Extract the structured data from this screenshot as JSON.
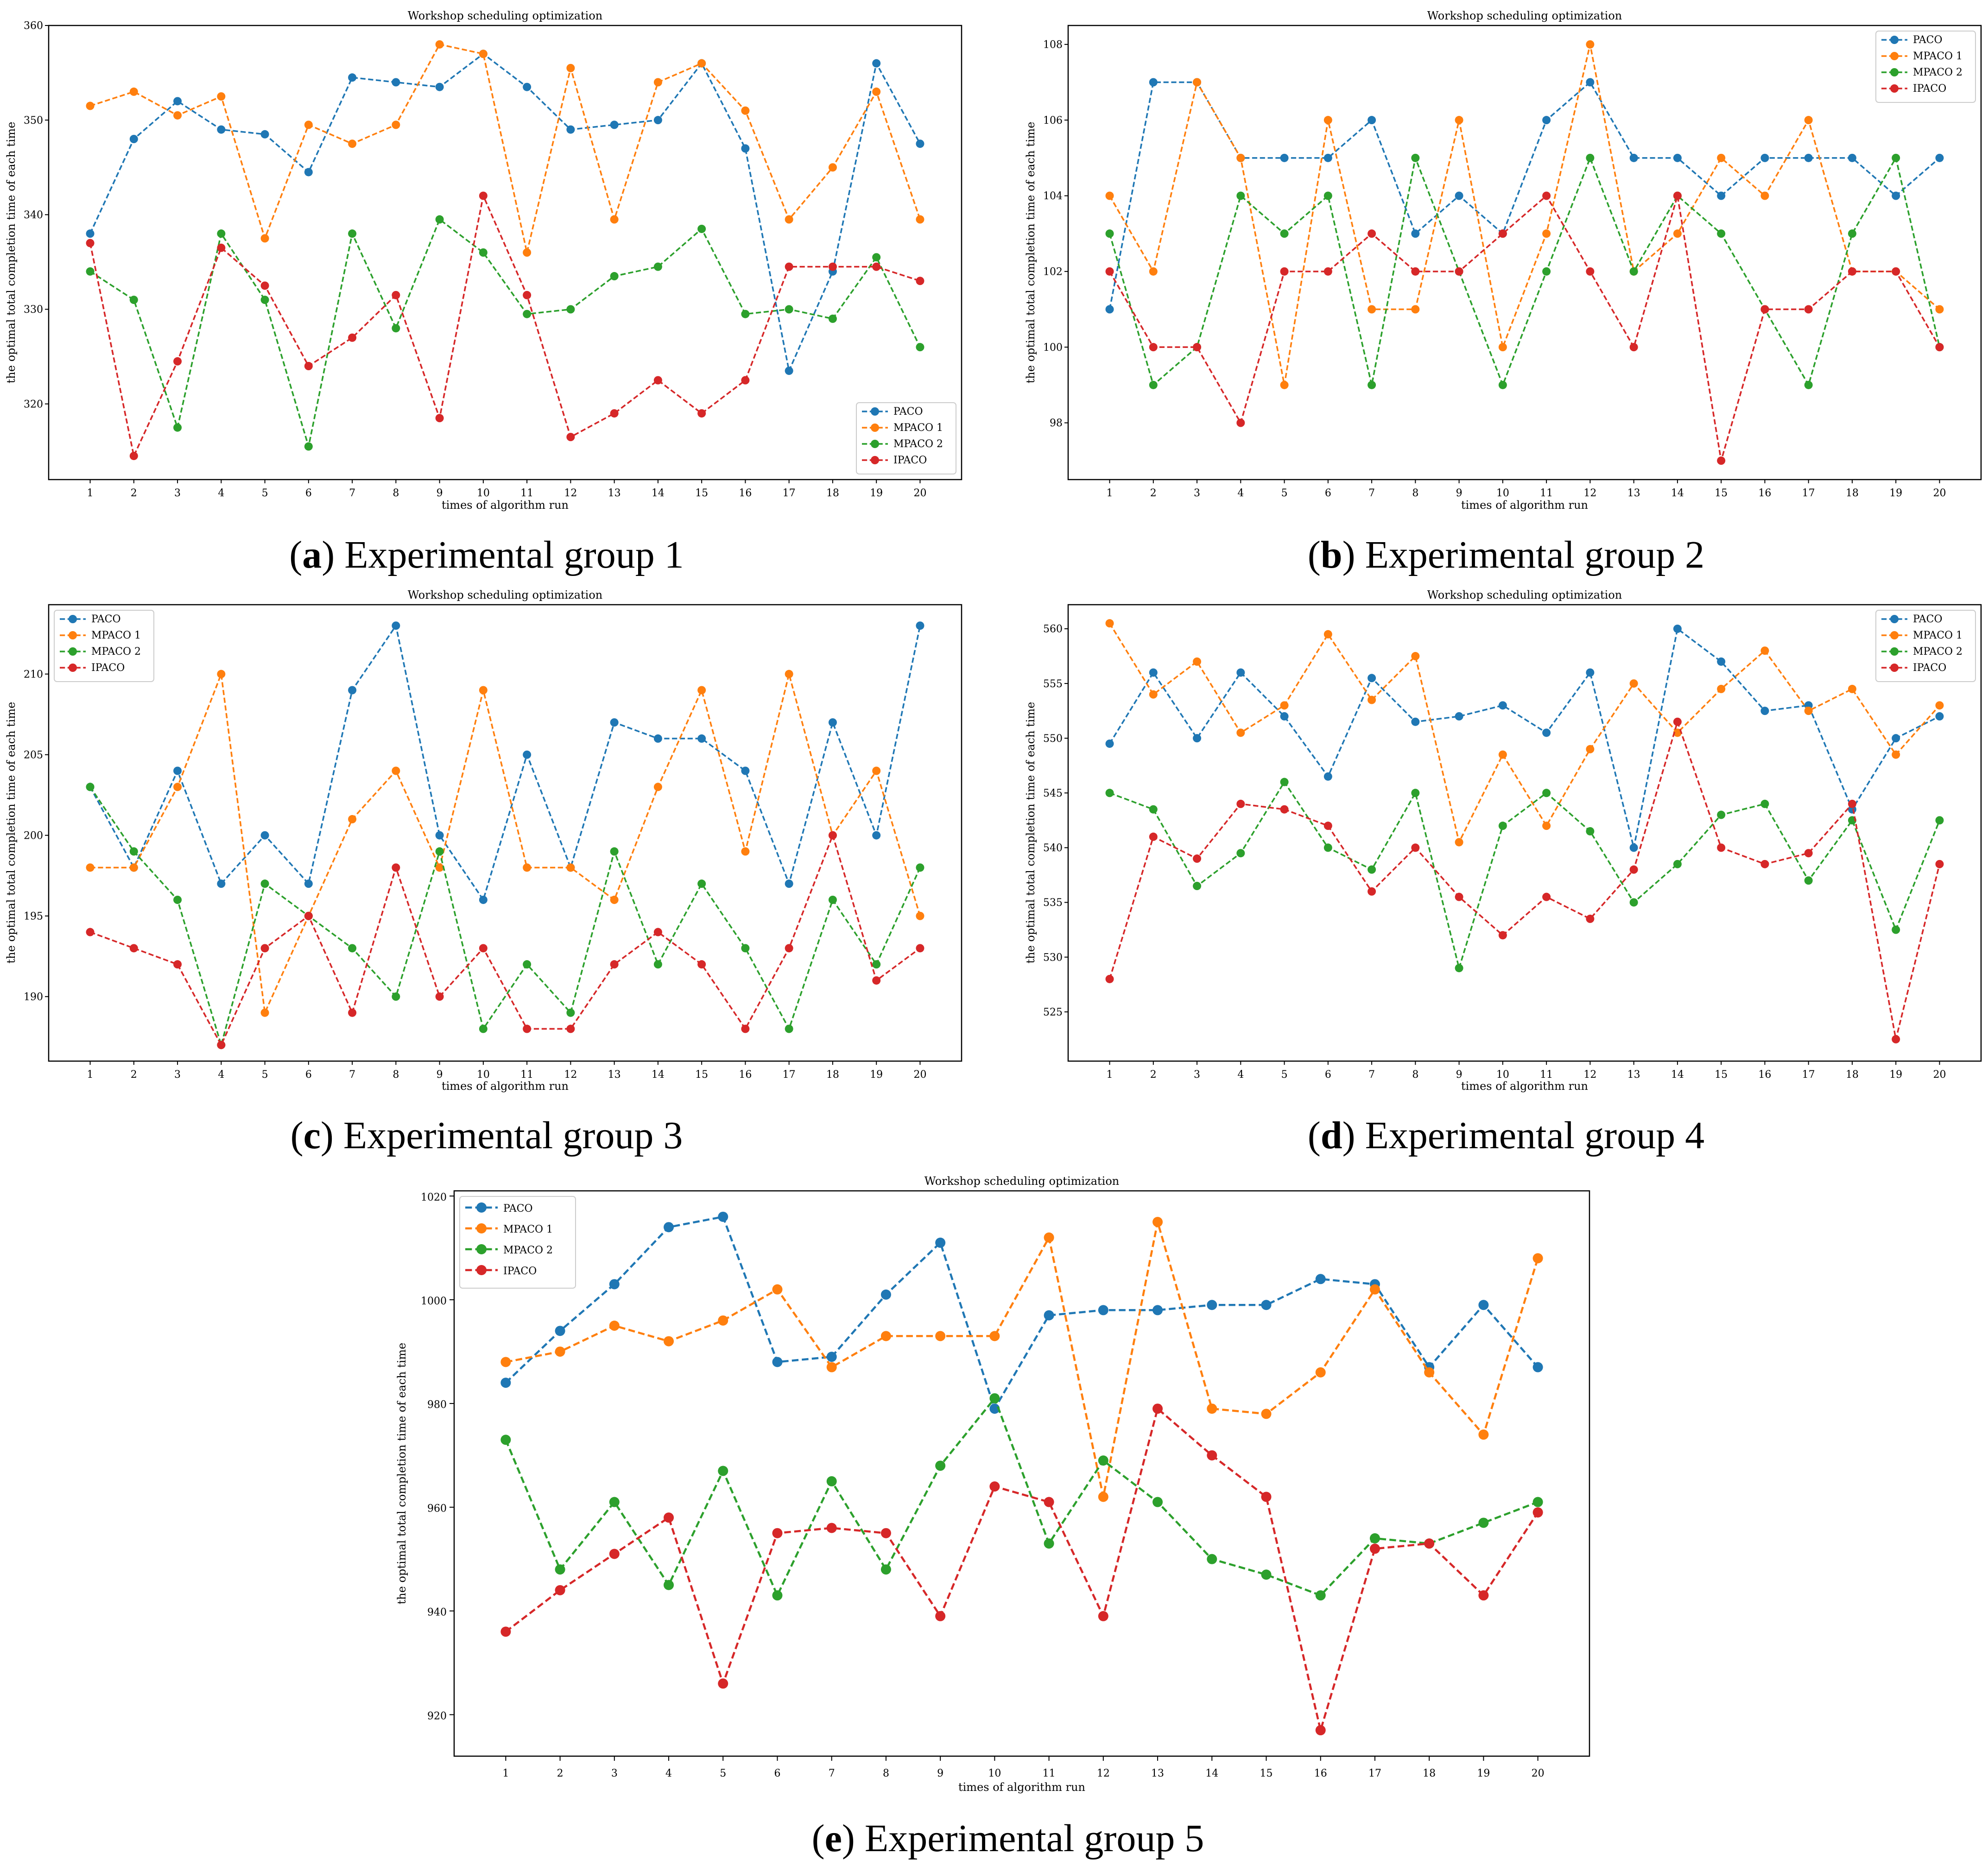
{
  "colors": {
    "PACO": "#1f77b4",
    "MPACO 1": "#ff7f0e",
    "MPACO 2": "#2ca02c",
    "IPACO": "#d62728"
  },
  "chart_data": [
    {
      "panel_id": "a",
      "type": "line",
      "title": "Workshop scheduling optimization",
      "xlabel": "times of algorithm run",
      "ylabel": "the optimal total completion time of each time",
      "caption_letter": "a",
      "caption_text": "Experimental group 1",
      "x": [
        1,
        2,
        3,
        4,
        5,
        6,
        7,
        8,
        9,
        10,
        11,
        12,
        13,
        14,
        15,
        16,
        17,
        18,
        19,
        20
      ],
      "xlim": [
        0.05,
        20.95
      ],
      "ylim": [
        312,
        360
      ],
      "yticks": [
        320,
        330,
        340,
        350,
        360
      ],
      "legend_position": "bottom-right",
      "series": [
        {
          "name": "PACO",
          "values": [
            338,
            348,
            352,
            349,
            348.5,
            344.5,
            354.5,
            354,
            353.5,
            357,
            353.5,
            349,
            349.5,
            350,
            356,
            347,
            323.5,
            334,
            356,
            347.5
          ]
        },
        {
          "name": "MPACO 1",
          "values": [
            351.5,
            353,
            350.5,
            352.5,
            337.5,
            349.5,
            347.5,
            349.5,
            358,
            357,
            336,
            355.5,
            339.5,
            354,
            356,
            351,
            339.5,
            345,
            353,
            339.5
          ]
        },
        {
          "name": "MPACO 2",
          "values": [
            334,
            331,
            317.5,
            338,
            331,
            315.5,
            338,
            328,
            339.5,
            336,
            329.5,
            330,
            333.5,
            334.5,
            338.5,
            329.5,
            330,
            329,
            335.5,
            326
          ]
        },
        {
          "name": "IPACO",
          "values": [
            337,
            314.5,
            324.5,
            336.5,
            332.5,
            324,
            327,
            331.5,
            318.5,
            342,
            331.5,
            316.5,
            319,
            322.5,
            319,
            322.5,
            334.5,
            334.5,
            334.5,
            333
          ]
        }
      ]
    },
    {
      "panel_id": "b",
      "type": "line",
      "title": "Workshop scheduling optimization",
      "xlabel": "times of algorithm run",
      "ylabel": "the optimal total completion time of each time",
      "caption_letter": "b",
      "caption_text": "Experimental group 2",
      "x": [
        1,
        2,
        3,
        4,
        5,
        6,
        7,
        8,
        9,
        10,
        11,
        12,
        13,
        14,
        15,
        16,
        17,
        18,
        19,
        20
      ],
      "xlim": [
        0.05,
        20.95
      ],
      "ylim": [
        96.5,
        108.5
      ],
      "yticks": [
        98,
        100,
        102,
        104,
        106,
        108
      ],
      "legend_position": "top-right",
      "series": [
        {
          "name": "PACO",
          "values": [
            101,
            107,
            107,
            105,
            105,
            105,
            106,
            103,
            104,
            103,
            106,
            107,
            105,
            105,
            104,
            105,
            105,
            105,
            104,
            105
          ]
        },
        {
          "name": "MPACO 1",
          "values": [
            104,
            102,
            107,
            105,
            99,
            106,
            101,
            101,
            106,
            100,
            103,
            108,
            102,
            103,
            105,
            104,
            106,
            102,
            102,
            101
          ]
        },
        {
          "name": "MPACO 2",
          "values": [
            103,
            99,
            100,
            104,
            103,
            104,
            99,
            105,
            102,
            99,
            102,
            105,
            102,
            104,
            103,
            101,
            99,
            103,
            105,
            100
          ]
        },
        {
          "name": "IPACO",
          "values": [
            102,
            100,
            100,
            98,
            102,
            102,
            103,
            102,
            102,
            103,
            104,
            102,
            100,
            104,
            97,
            101,
            101,
            102,
            102,
            100
          ]
        }
      ]
    },
    {
      "panel_id": "c",
      "type": "line",
      "title": "Workshop scheduling optimization",
      "xlabel": "times of algorithm run",
      "ylabel": "the optimal total completion time of each time",
      "caption_letter": "c",
      "caption_text": "Experimental group 3",
      "x": [
        1,
        2,
        3,
        4,
        5,
        6,
        7,
        8,
        9,
        10,
        11,
        12,
        13,
        14,
        15,
        16,
        17,
        18,
        19,
        20
      ],
      "xlim": [
        0.05,
        20.95
      ],
      "ylim": [
        186,
        214.3
      ],
      "yticks": [
        190,
        195,
        200,
        205,
        210
      ],
      "legend_position": "top-left",
      "series": [
        {
          "name": "PACO",
          "values": [
            203,
            198,
            204,
            197,
            200,
            197,
            209,
            213,
            200,
            196,
            205,
            198,
            207,
            206,
            206,
            204,
            197,
            207,
            200,
            213
          ]
        },
        {
          "name": "MPACO 1",
          "values": [
            198,
            198,
            203,
            210,
            189,
            195,
            201,
            204,
            198,
            209,
            198,
            198,
            196,
            203,
            209,
            199,
            210,
            200,
            204,
            195
          ]
        },
        {
          "name": "MPACO 2",
          "values": [
            203,
            199,
            196,
            187,
            197,
            195,
            193,
            190,
            199,
            188,
            192,
            189,
            199,
            192,
            197,
            193,
            188,
            196,
            192,
            198
          ]
        },
        {
          "name": "IPACO",
          "values": [
            194,
            193,
            192,
            187,
            193,
            195,
            189,
            198,
            190,
            193,
            188,
            188,
            192,
            194,
            192,
            188,
            193,
            200,
            191,
            193
          ]
        }
      ]
    },
    {
      "panel_id": "d",
      "type": "line",
      "title": "Workshop scheduling optimization",
      "xlabel": "times of algorithm run",
      "ylabel": "the optimal total completion time of each time",
      "caption_letter": "d",
      "caption_text": "Experimental group 4",
      "x": [
        1,
        2,
        3,
        4,
        5,
        6,
        7,
        8,
        9,
        10,
        11,
        12,
        13,
        14,
        15,
        16,
        17,
        18,
        19,
        20
      ],
      "xlim": [
        0.05,
        20.95
      ],
      "ylim": [
        520.5,
        562.2
      ],
      "yticks": [
        525,
        530,
        535,
        540,
        545,
        550,
        555,
        560
      ],
      "legend_position": "top-right",
      "series": [
        {
          "name": "PACO",
          "values": [
            549.5,
            556,
            550,
            556,
            552,
            546.5,
            555.5,
            551.5,
            552,
            553,
            550.5,
            556,
            540,
            560,
            557,
            552.5,
            553,
            543.5,
            550,
            552
          ]
        },
        {
          "name": "MPACO 1",
          "values": [
            560.5,
            554,
            557,
            550.5,
            553,
            559.5,
            553.5,
            557.5,
            540.5,
            548.5,
            542,
            549,
            555,
            550.5,
            554.5,
            558,
            552.5,
            554.5,
            548.5,
            553
          ]
        },
        {
          "name": "MPACO 2",
          "values": [
            545,
            543.5,
            536.5,
            539.5,
            546,
            540,
            538,
            545,
            529,
            542,
            545,
            541.5,
            535,
            538.5,
            543,
            544,
            537,
            542.5,
            532.5,
            542.5
          ]
        },
        {
          "name": "IPACO",
          "values": [
            528,
            541,
            539,
            544,
            543.5,
            542,
            536,
            540,
            535.5,
            532,
            535.5,
            533.5,
            538,
            551.5,
            540,
            538.5,
            539.5,
            544,
            522.5,
            538.5
          ]
        }
      ]
    },
    {
      "panel_id": "e",
      "type": "line",
      "title": "Workshop scheduling optimization",
      "xlabel": "times of algorithm run",
      "ylabel": "the optimal total completion time of each time",
      "caption_letter": "e",
      "caption_text": "Experimental group 5",
      "x": [
        1,
        2,
        3,
        4,
        5,
        6,
        7,
        8,
        9,
        10,
        11,
        12,
        13,
        14,
        15,
        16,
        17,
        18,
        19,
        20
      ],
      "xlim": [
        0.05,
        20.95
      ],
      "ylim": [
        912,
        1021
      ],
      "yticks": [
        920,
        940,
        960,
        980,
        1000,
        1020
      ],
      "legend_position": "top-left",
      "series": [
        {
          "name": "PACO",
          "values": [
            984,
            994,
            1003,
            1014,
            1016,
            988,
            989,
            1001,
            1011,
            979,
            997,
            998,
            998,
            999,
            999,
            1004,
            1003,
            987,
            999,
            987
          ]
        },
        {
          "name": "MPACO 1",
          "values": [
            988,
            990,
            995,
            992,
            996,
            1002,
            987,
            993,
            993,
            993,
            1012,
            962,
            1015,
            979,
            978,
            986,
            1002,
            986,
            974,
            1008
          ]
        },
        {
          "name": "MPACO 2",
          "values": [
            973,
            948,
            961,
            945,
            967,
            943,
            965,
            948,
            968,
            981,
            953,
            969,
            961,
            950,
            947,
            943,
            954,
            953,
            957,
            961
          ]
        },
        {
          "name": "IPACO",
          "values": [
            936,
            944,
            951,
            958,
            926,
            955,
            956,
            955,
            939,
            964,
            961,
            939,
            979,
            970,
            962,
            917,
            952,
            953,
            943,
            959
          ]
        }
      ]
    }
  ]
}
